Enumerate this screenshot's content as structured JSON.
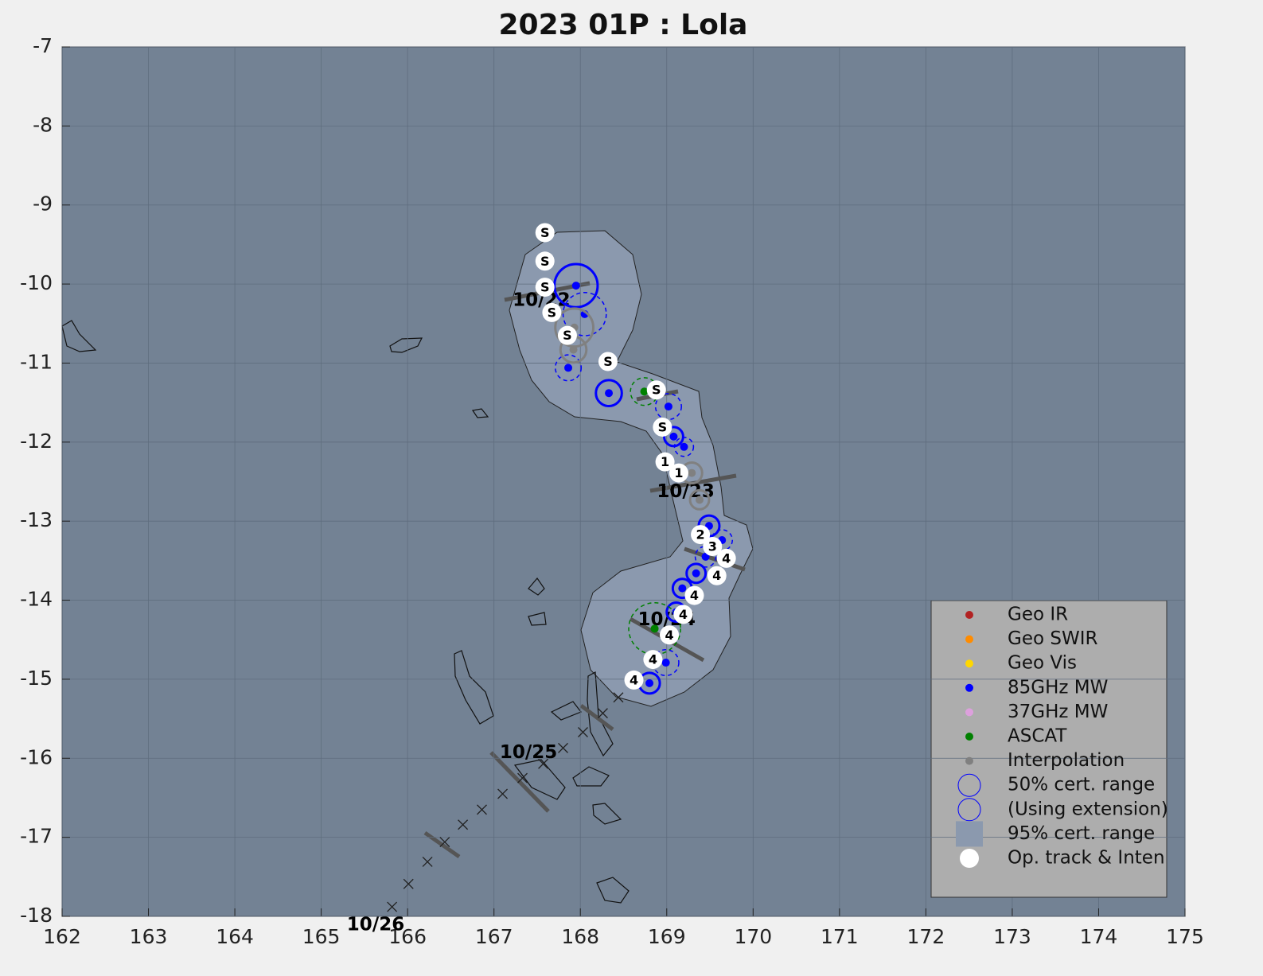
{
  "chart_data": {
    "type": "track",
    "title": "2023  01P :  Lola",
    "xlim": [
      162,
      175
    ],
    "ylim": [
      -18,
      -7
    ],
    "xticks": [
      162,
      163,
      164,
      165,
      166,
      167,
      168,
      169,
      170,
      171,
      172,
      173,
      174,
      175
    ],
    "yticks": [
      -7,
      -8,
      -9,
      -10,
      -11,
      -12,
      -13,
      -14,
      -15,
      -16,
      -17,
      -18
    ],
    "grid": true,
    "legend": "lower right",
    "series": [
      {
        "name": "Geo IR",
        "color": "#b22222",
        "x": [],
        "values": [],
        "radius": [],
        "extension": []
      },
      {
        "name": "Geo SWIR",
        "color": "#ff8c00",
        "x": [],
        "values": [],
        "radius": [],
        "extension": []
      },
      {
        "name": "Geo Vis",
        "color": "#ffd700",
        "x": [],
        "values": [],
        "radius": [],
        "extension": []
      },
      {
        "name": "85GHz MW",
        "color": "#0000ff",
        "x": [
          167.95,
          168.05,
          167.86,
          168.33,
          169.02,
          169.08,
          169.2,
          169.49,
          169.64,
          169.45,
          169.34,
          169.18,
          169.11,
          168.99,
          168.8
        ],
        "values": [
          -10.02,
          -10.38,
          -11.06,
          -11.38,
          -11.55,
          -11.93,
          -12.06,
          -13.06,
          -13.24,
          -13.45,
          -13.66,
          -13.85,
          -14.15,
          -14.79,
          -15.05
        ],
        "radius": [
          0.25,
          0.25,
          0.15,
          0.15,
          0.15,
          0.11,
          0.11,
          0.12,
          0.12,
          0.12,
          0.11,
          0.11,
          0.11,
          0.15,
          0.12
        ],
        "extension": [
          false,
          true,
          true,
          false,
          true,
          false,
          true,
          false,
          true,
          true,
          false,
          false,
          false,
          true,
          false
        ]
      },
      {
        "name": "37GHz MW",
        "color": "#dda0dd",
        "x": [],
        "values": [],
        "radius": [],
        "extension": []
      },
      {
        "name": "ASCAT",
        "color": "#008000",
        "x": [
          168.74,
          168.86
        ],
        "values": [
          -11.36,
          -14.36
        ],
        "radius": [
          0.16,
          0.3
        ],
        "extension": [
          true,
          true
        ]
      },
      {
        "name": "Interpolation",
        "color": "#808080",
        "x": [
          167.93,
          167.92,
          169.29,
          169.38
        ],
        "values": [
          -10.55,
          -10.83,
          -12.39,
          -12.73
        ],
        "radius": [
          0.22,
          0.15,
          0.12,
          0.11
        ],
        "extension": [
          false,
          false,
          false,
          false
        ]
      },
      {
        "name": "Op. track & Inten",
        "color": "#ffffff",
        "x": [
          167.59,
          167.59,
          167.59,
          167.67,
          167.85,
          168.32,
          168.88,
          168.95,
          168.98,
          169.14,
          169.39,
          169.53,
          169.69,
          169.58,
          169.32,
          169.19,
          169.03,
          168.84,
          168.62
        ],
        "values": [
          -9.35,
          -9.71,
          -10.04,
          -10.36,
          -10.65,
          -10.98,
          -11.34,
          -11.81,
          -12.25,
          -12.39,
          -13.17,
          -13.32,
          -13.47,
          -13.69,
          -13.94,
          -14.18,
          -14.44,
          -14.75,
          -15.01
        ],
        "labels": [
          "S",
          "S",
          "S",
          "S",
          "S",
          "S",
          "S",
          "S",
          "1",
          "1",
          "2",
          "3",
          "4",
          "4",
          "4",
          "4",
          "4",
          "4",
          "4"
        ]
      }
    ],
    "cert_50_label": "50% cert. range",
    "extension_label": "(Using extension)",
    "cert_95_label": "95% cert. range",
    "forecast": {
      "x": [
        165.82,
        166.01,
        166.23,
        166.43,
        166.64,
        166.86,
        167.1,
        167.33,
        167.57,
        167.8,
        168.03,
        168.26,
        168.44
      ],
      "values": [
        -17.88,
        -17.59,
        -17.31,
        -17.06,
        -16.84,
        -16.65,
        -16.45,
        -16.25,
        -16.07,
        -15.87,
        -15.67,
        -15.43,
        -15.23
      ]
    },
    "dates": {
      "labels": [
        "10/22",
        "10/23",
        "10/24",
        "10/25",
        "10/26"
      ],
      "x": [
        167.55,
        169.22,
        169.0,
        167.4,
        165.63
      ],
      "values": [
        -10.21,
        -12.63,
        -14.25,
        -15.93,
        -18.11
      ]
    }
  }
}
